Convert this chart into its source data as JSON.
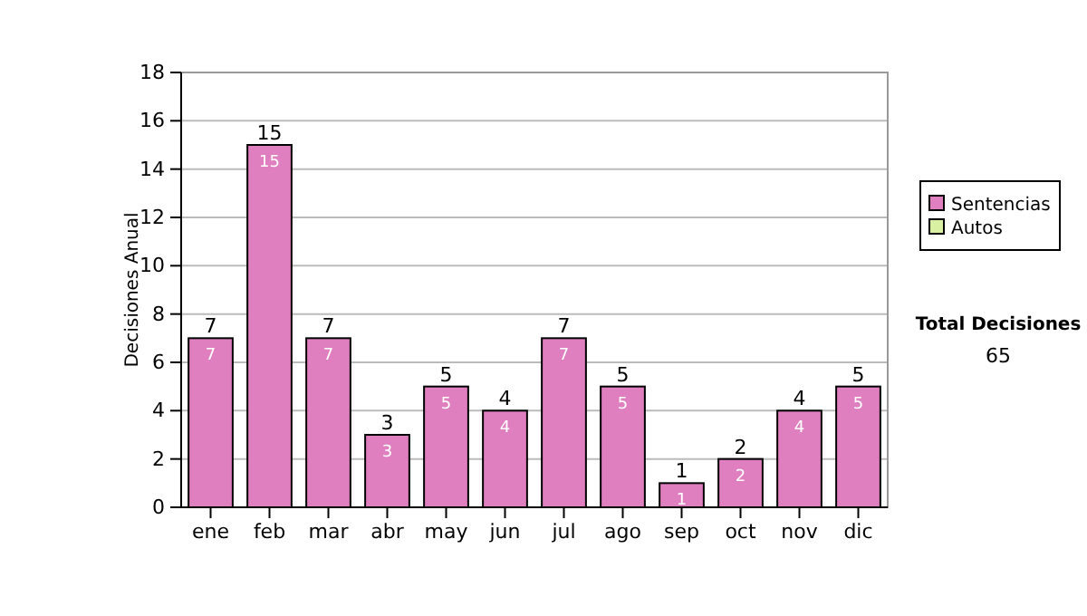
{
  "chart_data": {
    "type": "bar",
    "ylabel": "Decisiones Anual",
    "categories": [
      "ene",
      "feb",
      "mar",
      "abr",
      "may",
      "jun",
      "jul",
      "ago",
      "sep",
      "oct",
      "nov",
      "dic"
    ],
    "series": [
      {
        "name": "Sentencias",
        "color": "#df7fbf",
        "values": [
          7,
          15,
          7,
          3,
          5,
          4,
          7,
          5,
          1,
          2,
          4,
          5
        ],
        "value_labels": [
          "7",
          "15",
          "7",
          "3",
          "5",
          "4",
          "7",
          "5",
          "1",
          "2",
          "4",
          "5"
        ]
      },
      {
        "name": "Autos",
        "color": "#d9f0a3",
        "values": [
          0,
          0,
          0,
          0,
          0,
          0,
          0,
          0,
          0,
          0,
          0,
          0
        ]
      }
    ],
    "stacked": true,
    "totals": [
      "7",
      "15",
      "7",
      "3",
      "5",
      "4",
      "7",
      "5",
      "1",
      "2",
      "4",
      "5"
    ],
    "ylim": [
      0,
      18
    ],
    "yticks": [
      0,
      2,
      4,
      6,
      8,
      10,
      12,
      14,
      16,
      18
    ],
    "grid": "y",
    "legend": "right",
    "annotations": [
      "Total Decisiones",
      "65"
    ]
  }
}
